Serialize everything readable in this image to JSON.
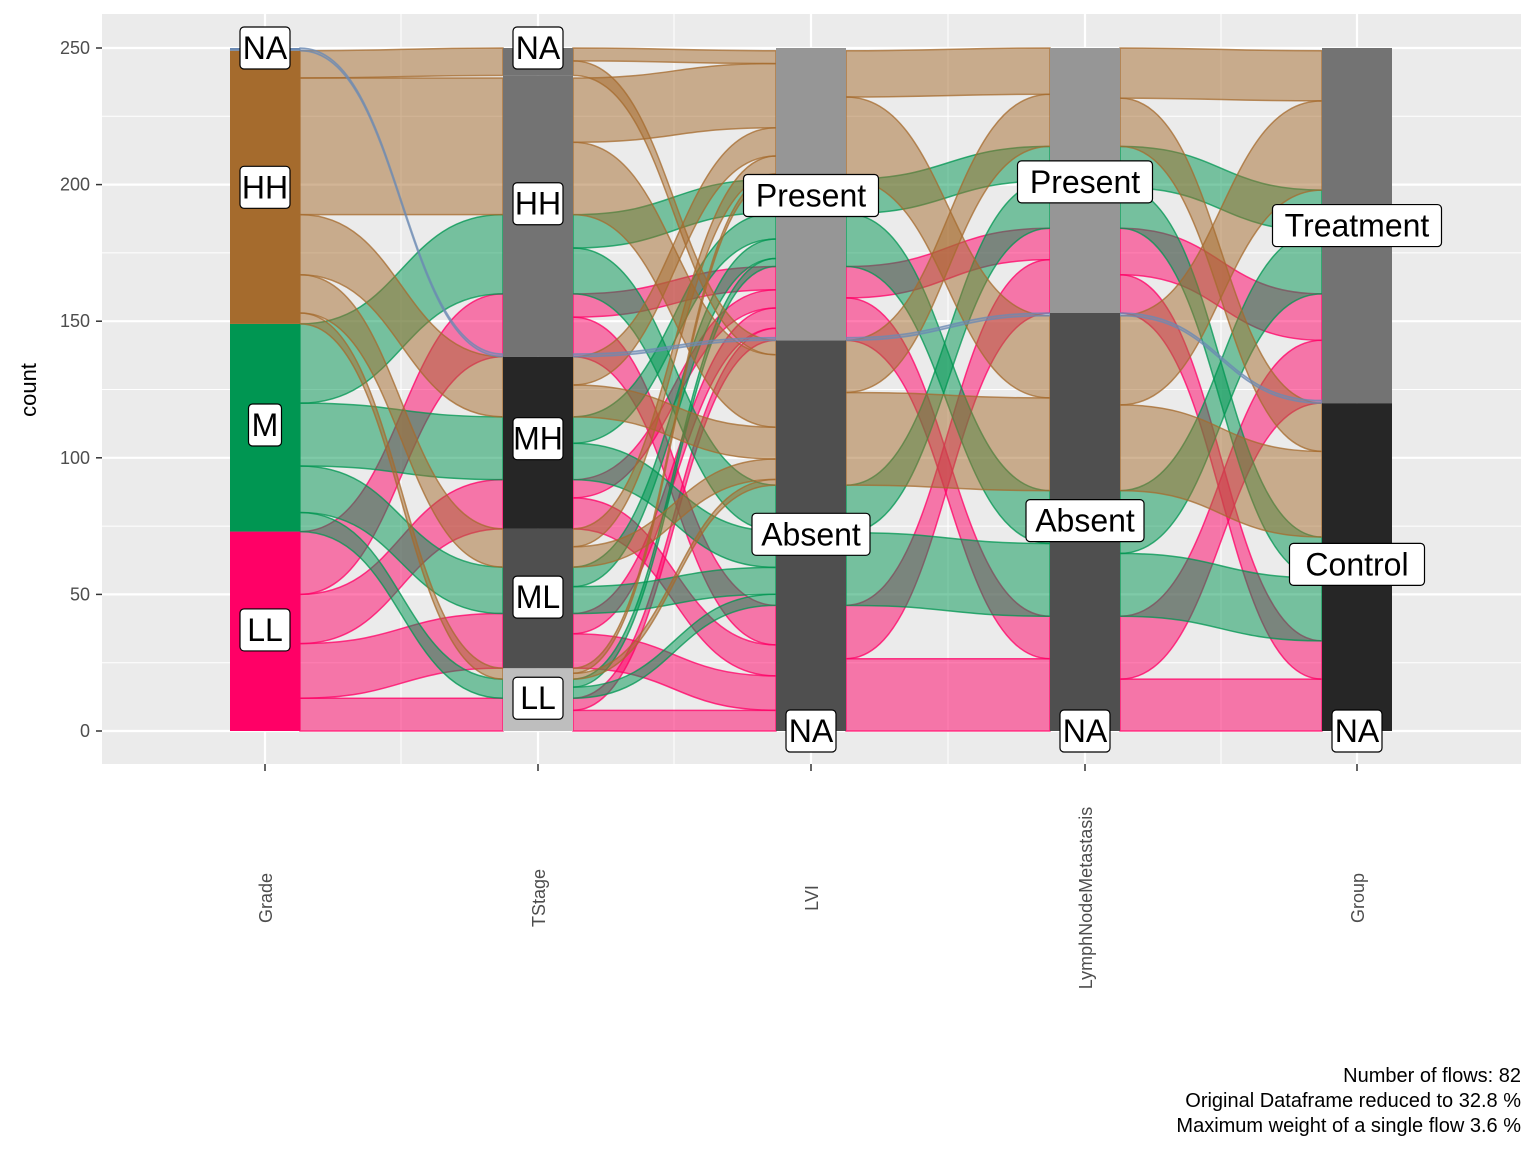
{
  "chart_data": {
    "type": "alluvial",
    "ylabel": "count",
    "ylim": [
      -12,
      262
    ],
    "y_ticks": [
      0,
      50,
      100,
      150,
      200,
      250
    ],
    "axes": [
      "Grade",
      "TStage",
      "LVI",
      "LymphNodeMetastasis",
      "Group"
    ],
    "strata": [
      {
        "axis": "Grade",
        "levels": [
          {
            "label": "LL",
            "count": 73,
            "color": "#ff0066",
            "show_label": true
          },
          {
            "label": "M",
            "count": 76,
            "color": "#009652",
            "show_label": true
          },
          {
            "label": "HH",
            "count": 100,
            "color": "#a56b2d",
            "show_label": true
          },
          {
            "label": "NA",
            "count": 1,
            "color": "#6b8ab3",
            "show_label": true
          }
        ]
      },
      {
        "axis": "TStage",
        "levels": [
          {
            "label": "LL",
            "count": 23,
            "color": "#bebebe",
            "show_label": true
          },
          {
            "label": "ML",
            "count": 51,
            "color": "#4f4f4f",
            "show_label": true
          },
          {
            "label": "MH",
            "count": 63,
            "color": "#262626",
            "show_label": true
          },
          {
            "label": "HH",
            "count": 103,
            "color": "#737373",
            "show_label": true
          },
          {
            "label": "NA",
            "count": 10,
            "color": "#737373",
            "show_label": true
          }
        ]
      },
      {
        "axis": "LVI",
        "levels": [
          {
            "label": "NA",
            "count": 0,
            "color": "#4f4f4f",
            "show_label": true
          },
          {
            "label": "Absent",
            "count": 143,
            "color": "#4f4f4f",
            "show_label": true
          },
          {
            "label": "Present",
            "count": 107,
            "color": "#969696",
            "show_label": true
          }
        ]
      },
      {
        "axis": "LymphNodeMetastasis",
        "levels": [
          {
            "label": "NA",
            "count": 0,
            "color": "#4f4f4f",
            "show_label": true
          },
          {
            "label": "Absent",
            "count": 153,
            "color": "#4f4f4f",
            "show_label": true
          },
          {
            "label": "Present",
            "count": 97,
            "color": "#969696",
            "show_label": true
          }
        ]
      },
      {
        "axis": "Group",
        "levels": [
          {
            "label": "NA",
            "count": 0,
            "color": "#262626",
            "show_label": true
          },
          {
            "label": "Control",
            "count": 120,
            "color": "#262626",
            "show_label": true
          },
          {
            "label": "Treatment",
            "count": 130,
            "color": "#737373",
            "show_label": true
          }
        ]
      }
    ],
    "label_positions": {
      "Grade": {
        "NA": 250,
        "HH": 199,
        "M": 112,
        "LL": 37
      },
      "TStage": {
        "NA": 250,
        "HH": 193,
        "MH": 107,
        "ML": 49,
        "LL": 12
      },
      "LVI": {
        "Present": 196,
        "Absent": 72,
        "NA": 0
      },
      "LymphNodeMetastasis": {
        "Present": 201,
        "Absent": 77,
        "NA": 0
      },
      "Group": {
        "Treatment": 185,
        "Control": 61,
        "NA": 0
      }
    },
    "flow_groups": [
      {
        "grade": "LL",
        "color": "#ff0066",
        "count": 73,
        "tstage": [
          [
            "LL",
            12
          ],
          [
            "ML",
            20
          ],
          [
            "MH",
            18
          ],
          [
            "HH",
            23
          ]
        ],
        "lvi": [
          [
            "Absent",
            46
          ],
          [
            "Present",
            27
          ]
        ],
        "lnm": [
          [
            "Absent",
            42
          ],
          [
            "Present",
            31
          ]
        ],
        "group": [
          [
            "Control",
            33
          ],
          [
            "Treatment",
            40
          ]
        ]
      },
      {
        "grade": "M",
        "color": "#009652",
        "count": 76,
        "tstage": [
          [
            "LL",
            7
          ],
          [
            "ML",
            17
          ],
          [
            "MH",
            23
          ],
          [
            "HH",
            29
          ]
        ],
        "lvi": [
          [
            "Absent",
            44
          ],
          [
            "Present",
            32
          ]
        ],
        "lnm": [
          [
            "Absent",
            46
          ],
          [
            "Present",
            30
          ]
        ],
        "group": [
          [
            "Control",
            38
          ],
          [
            "Treatment",
            38
          ]
        ]
      },
      {
        "grade": "HH",
        "color": "#a56b2d",
        "count": 100,
        "tstage": [
          [
            "LL",
            4
          ],
          [
            "ML",
            14
          ],
          [
            "MH",
            22
          ],
          [
            "HH",
            50
          ],
          [
            "NA",
            10
          ]
        ],
        "lvi": [
          [
            "Absent",
            53
          ],
          [
            "Present",
            47
          ]
        ],
        "lnm": [
          [
            "Absent",
            64
          ],
          [
            "Present",
            36
          ]
        ],
        "group": [
          [
            "Control",
            49
          ],
          [
            "Treatment",
            51
          ]
        ]
      },
      {
        "grade": "NA",
        "color": "#6b8ab3",
        "count": 1,
        "tstage": [
          [
            "MH",
            1
          ]
        ],
        "lvi": [
          [
            "Absent",
            1
          ]
        ],
        "lnm": [
          [
            "Absent",
            1
          ]
        ],
        "group": [
          [
            "Control",
            1
          ]
        ]
      }
    ],
    "caption": [
      "Number of flows: 82",
      "Original Dataframe reduced to 32.8 %",
      "Maximum weight of a single flow 3.6 %"
    ],
    "grid": true,
    "legend": "none",
    "panel_background": "#ebebeb",
    "grid_color": "#ffffff"
  }
}
